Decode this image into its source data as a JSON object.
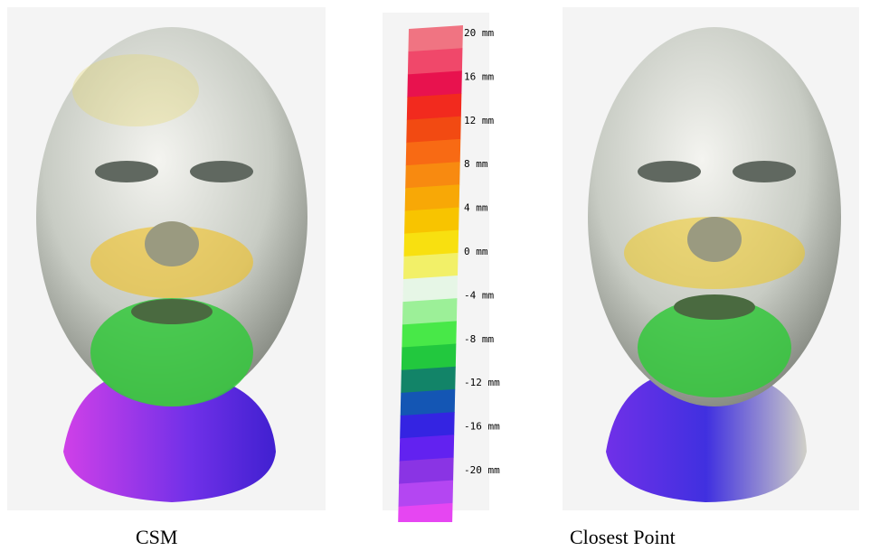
{
  "colorbar": {
    "labels": [
      "20 mm",
      "16 mm",
      "12 mm",
      "8 mm",
      "4 mm",
      "0 mm",
      "-4 mm",
      "-8 mm",
      "-12 mm",
      "-16 mm",
      "-20 mm"
    ],
    "colors": [
      "#f07482",
      "#f0486a",
      "#e8124e",
      "#f22a1e",
      "#f24a12",
      "#f86a14",
      "#f88a10",
      "#f8a806",
      "#f8c400",
      "#f8e010",
      "#f2f068",
      "#e6f6e6",
      "#9cf098",
      "#48e848",
      "#22c83e",
      "#128468",
      "#1456b4",
      "#3424e2",
      "#6222f0",
      "#8a34e4",
      "#b446f2",
      "#e646f2"
    ]
  },
  "captions": {
    "left": "CSM",
    "right": "Closest Point"
  }
}
